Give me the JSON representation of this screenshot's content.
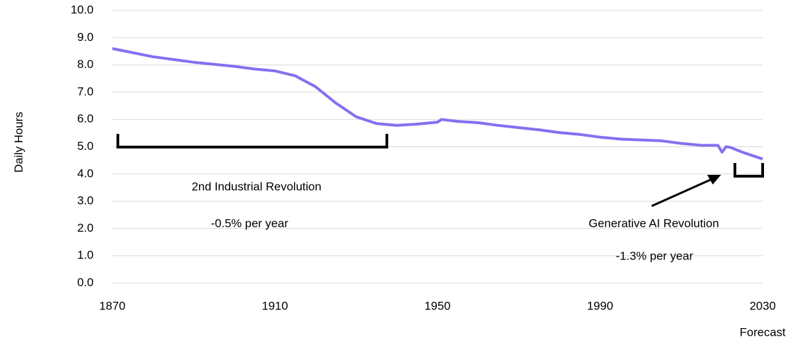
{
  "chart_data": {
    "type": "line",
    "y_label": "Daily Hours",
    "x_note": "Forecast",
    "annotations": [
      "2nd Industrial Revolution",
      "-0.5% per year",
      "Generative AI Revolution",
      "-1.3% per year"
    ],
    "xlim": [
      1870,
      2030
    ],
    "xticks": [
      1870,
      1910,
      1950,
      1990,
      2030
    ],
    "ylim": [
      0,
      10
    ],
    "yticks": [
      {
        "value": 0,
        "label": "0.0"
      },
      {
        "value": 1,
        "label": "1.0"
      },
      {
        "value": 2,
        "label": "2.0"
      },
      {
        "value": 3,
        "label": "3.0"
      },
      {
        "value": 4,
        "label": "4.0"
      },
      {
        "value": 5,
        "label": "5.0"
      },
      {
        "value": 6,
        "label": "6.0"
      },
      {
        "value": 7,
        "label": "7.0"
      },
      {
        "value": 8,
        "label": "8.0"
      },
      {
        "value": 9,
        "label": "9.0"
      },
      {
        "value": 10,
        "label": "10.0"
      }
    ],
    "grid": true,
    "color": "#8470f0",
    "x": [
      1870,
      1880,
      1890,
      1900,
      1905,
      1910,
      1915,
      1920,
      1925,
      1930,
      1935,
      1940,
      1945,
      1950,
      1951,
      1955,
      1960,
      1965,
      1970,
      1975,
      1980,
      1985,
      1990,
      1995,
      2000,
      2005,
      2010,
      2015,
      2019,
      2020,
      2021,
      2022,
      2025,
      2030
    ],
    "values": [
      8.6,
      8.3,
      8.1,
      7.95,
      7.85,
      7.78,
      7.6,
      7.2,
      6.6,
      6.1,
      5.85,
      5.78,
      5.83,
      5.9,
      6.0,
      5.93,
      5.88,
      5.78,
      5.7,
      5.62,
      5.52,
      5.45,
      5.35,
      5.28,
      5.25,
      5.22,
      5.12,
      5.05,
      5.05,
      4.8,
      5.0,
      4.98,
      4.8,
      4.55
    ]
  }
}
